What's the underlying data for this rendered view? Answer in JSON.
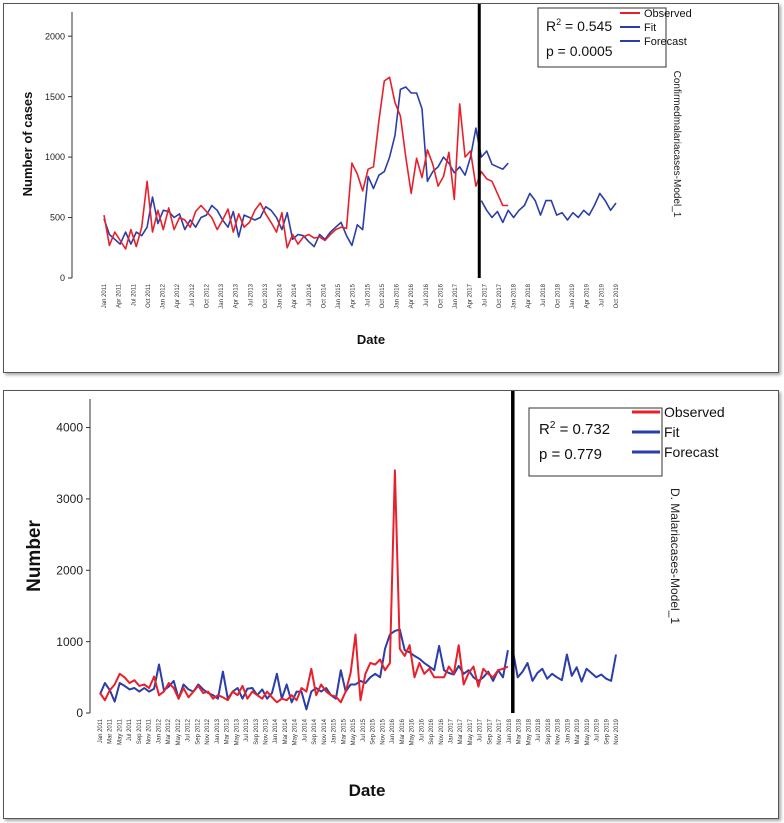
{
  "chart_data": [
    {
      "type": "line",
      "ylabel": "Number of cases",
      "xlabel": "Date",
      "side_title": "Confirmedmalariacases-Model_1",
      "ylim": [
        0,
        2200
      ],
      "yticks": [
        0,
        500,
        1000,
        1500,
        2000
      ],
      "forecast_start_index": 70,
      "date_labels": [
        "Jan 2011",
        "Apr 2011",
        "Jul 2011",
        "Oct 2011",
        "Jan 2012",
        "Apr 2012",
        "Jul 2012",
        "Oct 2012",
        "Jan 2013",
        "Apr 2013",
        "Jul 2013",
        "Oct 2013",
        "Jan 2014",
        "Apr 2014",
        "Jul 2014",
        "Oct 2014",
        "Jan 2015",
        "Apr 2015",
        "Jul 2015",
        "Oct 2015",
        "Jan 2016",
        "Apr 2016",
        "Jul 2016",
        "Oct 2016",
        "Jan 2017",
        "Apr 2017",
        "Jul 2017",
        "Oct 2017",
        "Jan 2018",
        "Apr 2018",
        "Jul 2018",
        "Oct 2018",
        "Jan 2019",
        "Apr 2019",
        "Jul 2019",
        "Oct 2019"
      ],
      "stats": {
        "r2_label": "R",
        "r2_exp": "2",
        "r2_value": " = 0.545",
        "p_value": "p = 0.0005"
      },
      "legend": [
        {
          "name": "Observed",
          "color": "#e8202a"
        },
        {
          "name": "Fit",
          "color": "#2b3ea8"
        },
        {
          "name": "Forecast",
          "color": "#2b3ea8"
        }
      ],
      "series": [
        {
          "name": "Observed",
          "color": "#e8202a",
          "start": 0,
          "values": [
            520,
            270,
            380,
            310,
            240,
            400,
            260,
            420,
            800,
            380,
            560,
            400,
            580,
            400,
            500,
            480,
            420,
            550,
            600,
            550,
            500,
            400,
            480,
            570,
            380,
            530,
            420,
            460,
            560,
            620,
            530,
            460,
            380,
            540,
            250,
            360,
            280,
            340,
            360,
            330,
            340,
            310,
            360,
            400,
            420,
            410,
            950,
            860,
            720,
            900,
            920,
            1300,
            1630,
            1660,
            1450,
            1340,
            1000,
            700,
            990,
            830,
            1060,
            940,
            760,
            840,
            1040,
            650,
            1440,
            1000,
            1050,
            760,
            880,
            820,
            800,
            700,
            600,
            600
          ]
        },
        {
          "name": "Fit",
          "color": "#2b3ea8",
          "start": 0,
          "values": [
            490,
            360,
            320,
            280,
            380,
            280,
            380,
            350,
            420,
            670,
            450,
            560,
            550,
            500,
            530,
            400,
            480,
            420,
            500,
            520,
            600,
            560,
            480,
            420,
            550,
            340,
            520,
            500,
            480,
            500,
            590,
            560,
            500,
            400,
            540,
            320,
            360,
            350,
            300,
            260,
            360,
            320,
            380,
            420,
            460,
            350,
            270,
            440,
            400,
            840,
            740,
            850,
            880,
            1000,
            1180,
            1560,
            1580,
            1530,
            1530,
            1400,
            800,
            880,
            920,
            1000,
            950,
            870,
            920,
            850,
            1000,
            1240,
            1000,
            1050,
            940,
            920,
            900,
            950
          ]
        },
        {
          "name": "Forecast",
          "color": "#2b3ea8",
          "start": 70,
          "values": [
            640,
            560,
            500,
            550,
            460,
            560,
            500,
            560,
            600,
            700,
            640,
            520,
            640,
            640,
            520,
            540,
            480,
            540,
            500,
            560,
            520,
            600,
            700,
            640,
            560,
            620
          ]
        }
      ]
    },
    {
      "type": "line",
      "ylabel": "Number",
      "xlabel": "Date",
      "side_title": "D. Malariacases-Model_1",
      "ylim": [
        0,
        4400
      ],
      "yticks": [
        0,
        1000,
        2000,
        3000,
        4000
      ],
      "forecast_start_index": 84,
      "date_labels": [
        "Jan 2011",
        "Mar 2011",
        "May 2011",
        "Jul 2011",
        "Sep 2011",
        "Nov 2011",
        "Jan 2012",
        "Mar 2012",
        "May 2012",
        "Jul 2012",
        "Sep 2012",
        "Nov 2012",
        "Jan 2013",
        "Mar 2013",
        "May 2013",
        "Jul 2013",
        "Sep 2013",
        "Nov 2013",
        "Jan 2014",
        "Mar 2014",
        "May 2014",
        "Jul 2014",
        "Sep 2014",
        "Nov 2014",
        "Jan 2015",
        "Mar 2015",
        "May 2015",
        "Jul 2015",
        "Sep 2015",
        "Nov 2015",
        "Jan 2016",
        "Mar 2016",
        "May 2016",
        "Jul 2016",
        "Sep 2016",
        "Nov 2016",
        "Jan 2017",
        "Mar 2017",
        "May 2017",
        "Jul 2017",
        "Sep 2017",
        "Nov 2017",
        "Jan 2018",
        "Mar 2018",
        "May 2018",
        "Jul 2018",
        "Sep 2018",
        "Nov 2018",
        "Jan 2019",
        "Mar 2019",
        "May 2019",
        "Jul 2019",
        "Sep 2019",
        "Nov 2019"
      ],
      "stats": {
        "r2_label": "R",
        "r2_exp": "2",
        "r2_value": " = 0.732",
        "p_value": "p = 0.779"
      },
      "legend": [
        {
          "name": "Observed",
          "color": "#e8202a"
        },
        {
          "name": "Fit",
          "color": "#2b3ea8"
        },
        {
          "name": "Forecast",
          "color": "#2b3ea8"
        }
      ],
      "series": [
        {
          "name": "Observed",
          "color": "#e8202a",
          "start": 0,
          "values": [
            280,
            180,
            320,
            400,
            550,
            500,
            420,
            460,
            380,
            400,
            350,
            510,
            250,
            300,
            420,
            350,
            200,
            350,
            220,
            300,
            380,
            280,
            300,
            200,
            250,
            220,
            180,
            300,
            250,
            380,
            200,
            300,
            250,
            200,
            300,
            220,
            150,
            200,
            180,
            250,
            180,
            350,
            300,
            620,
            250,
            400,
            300,
            250,
            230,
            150,
            300,
            560,
            1100,
            180,
            550,
            700,
            680,
            750,
            600,
            700,
            3400,
            900,
            800,
            950,
            500,
            700,
            550,
            620,
            500,
            500,
            500,
            650,
            550,
            950,
            400,
            560,
            650,
            370,
            620,
            550,
            500,
            600,
            620,
            650
          ]
        },
        {
          "name": "Fit",
          "color": "#2b3ea8",
          "start": 0,
          "values": [
            260,
            420,
            320,
            160,
            420,
            380,
            330,
            350,
            300,
            350,
            300,
            340,
            680,
            320,
            370,
            450,
            200,
            400,
            330,
            300,
            400,
            330,
            280,
            250,
            200,
            580,
            200,
            300,
            350,
            200,
            340,
            350,
            250,
            330,
            200,
            280,
            550,
            200,
            400,
            150,
            300,
            300,
            50,
            300,
            350,
            300,
            350,
            250,
            200,
            600,
            300,
            400,
            400,
            450,
            420,
            500,
            550,
            500,
            900,
            1100,
            1150,
            1170,
            880,
            850,
            800,
            760,
            700,
            650,
            600,
            940,
            600,
            560,
            540,
            660,
            550,
            600,
            500,
            450,
            500,
            580,
            450,
            600,
            500,
            880
          ]
        },
        {
          "name": "Forecast",
          "color": "#2b3ea8",
          "start": 84,
          "values": [
            880,
            500,
            580,
            700,
            450,
            560,
            620,
            480,
            550,
            500,
            460,
            820,
            520,
            640,
            440,
            620,
            560,
            500,
            540,
            480,
            450,
            820
          ]
        }
      ]
    }
  ]
}
